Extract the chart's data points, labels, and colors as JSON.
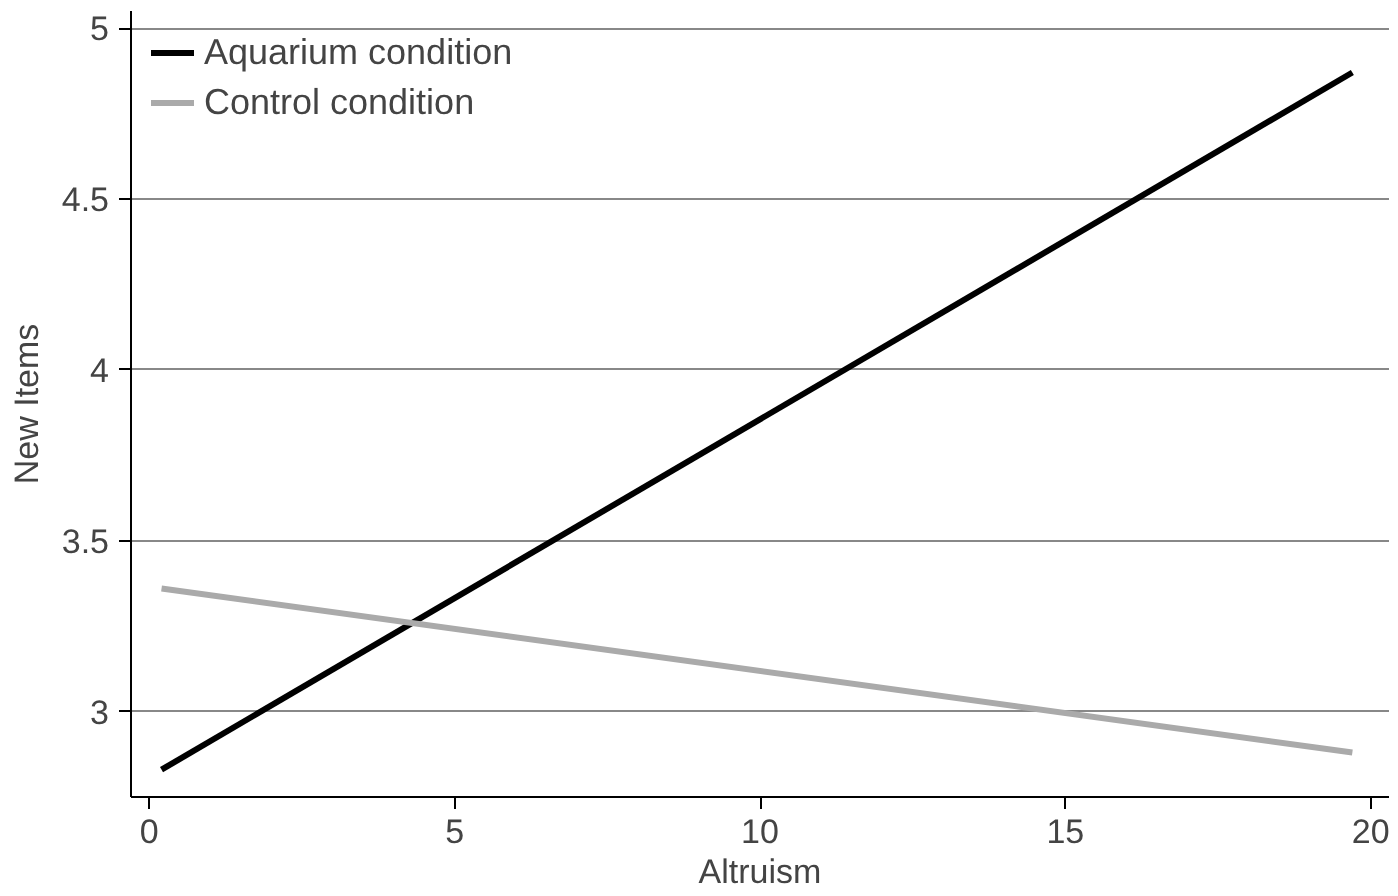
{
  "chart_data": {
    "type": "line",
    "xlabel": "Altruism",
    "ylabel": "New Items",
    "series": [
      {
        "name": "Aquarium condition",
        "color": "#000000",
        "values": [
          2.83,
          4.87
        ]
      },
      {
        "name": "Control condition",
        "color": "#aaaaaa",
        "values": [
          3.36,
          2.88
        ]
      }
    ],
    "x": [
      0.2,
      19.7
    ],
    "xlim": [
      -0.3,
      20.3
    ],
    "xticks": [
      0,
      5,
      10,
      15,
      20
    ],
    "ylim": [
      2.75,
      5.05
    ],
    "yticks": [
      3,
      3.5,
      4,
      4.5,
      5
    ],
    "grid": "y",
    "legend": "top left",
    "marker": "none",
    "line_style": "solid"
  }
}
